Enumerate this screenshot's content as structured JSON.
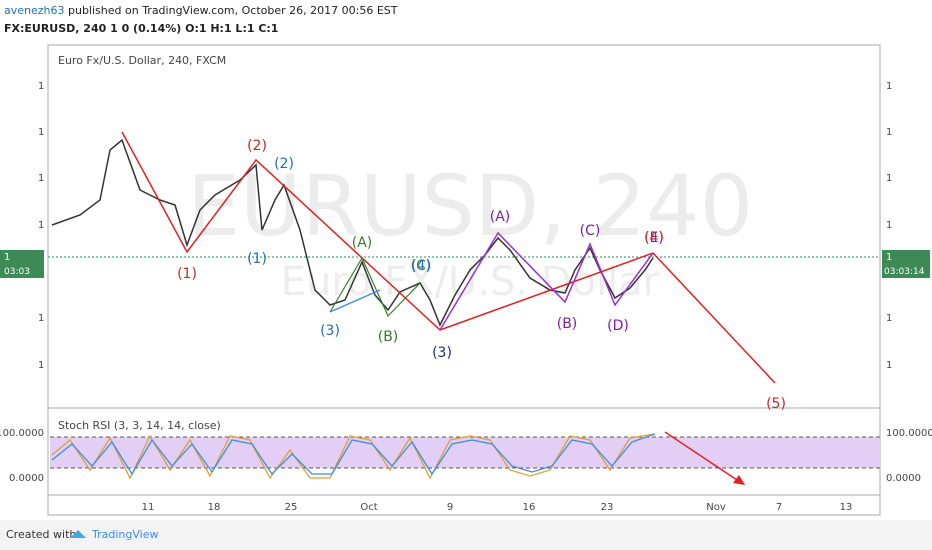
{
  "header": {
    "author": "avenezh63",
    "published": "published on TradingView.com, October 26, 2017 00:56 EST",
    "symbol_line": "FX:EURUSD, 240  1 0 (0.14%) O:1 H:1 L:1 C:1"
  },
  "chart": {
    "legend": "Euro Fx/U.S. Dollar, 240, FXCM",
    "watermark": "EURUSD, 240",
    "watermark_sub": "Euro FX/U.S. Dollar",
    "price_labels": [
      "1",
      "1",
      "1",
      "1",
      "1",
      "1"
    ],
    "last_price": "1",
    "countdown_left": "03:03",
    "countdown_right": "03:03:14",
    "wave_labels": [
      {
        "text": "(1)",
        "color": "#c62828"
      },
      {
        "text": "(2)",
        "color": "#c62828"
      },
      {
        "text": "(1)",
        "color": "#1f6fb5"
      },
      {
        "text": "(2)",
        "color": "#1f6fb5"
      },
      {
        "text": "(3)",
        "color": "#1f6fb5"
      },
      {
        "text": "(A)",
        "color": "#3c7a2b"
      },
      {
        "text": "(B)",
        "color": "#3c7a2b"
      },
      {
        "text": "(C)",
        "color": "#3c7a2b"
      },
      {
        "text": "(4)",
        "color": "#1f6fb5"
      },
      {
        "text": "(3)",
        "color": "#1d2f6b"
      },
      {
        "text": "(A)",
        "color": "#7b1fa2"
      },
      {
        "text": "(B)",
        "color": "#7b1fa2"
      },
      {
        "text": "(C)",
        "color": "#7b1fa2"
      },
      {
        "text": "(D)",
        "color": "#7b1fa2"
      },
      {
        "text": "(E)",
        "color": "#7b1fa2"
      },
      {
        "text": "(4)",
        "color": "#c62828"
      },
      {
        "text": "(5)",
        "color": "#c62828"
      }
    ],
    "time_labels": [
      "11",
      "18",
      "25",
      "Oct",
      "9",
      "16",
      "23",
      "Nov",
      "7",
      "13"
    ]
  },
  "indicator": {
    "title": "Stoch RSI (3, 3, 14, 14, close)",
    "levels": [
      "100.0000",
      "0.0000"
    ]
  },
  "footer": {
    "created": "Created with",
    "brand": "TradingView"
  }
}
